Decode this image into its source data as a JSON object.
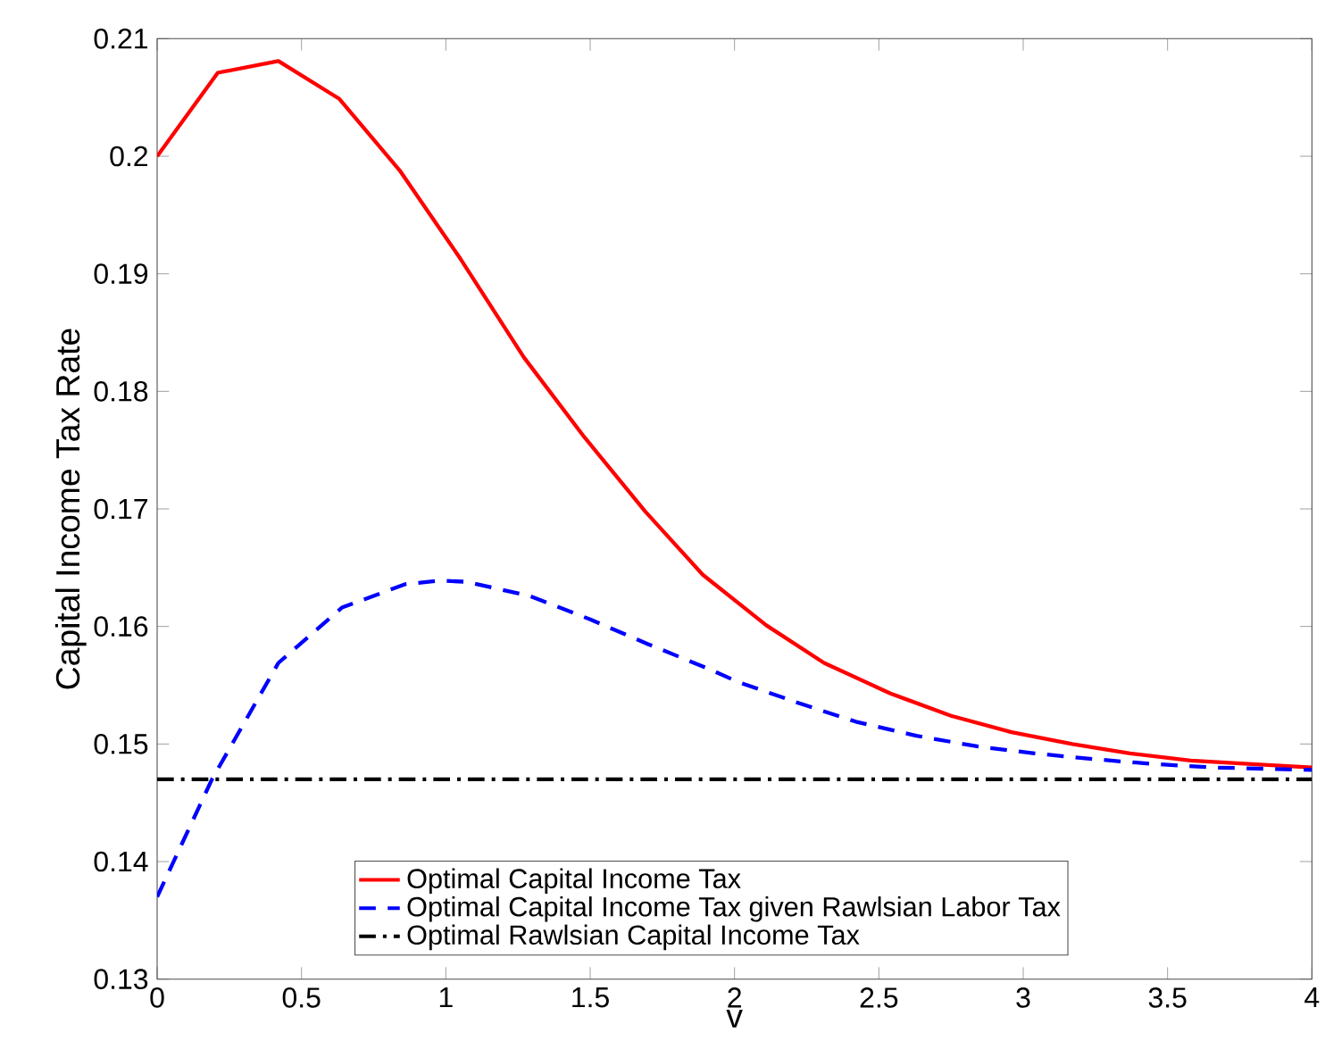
{
  "chart_data": {
    "type": "line",
    "xlabel": "v",
    "ylabel": "Capital Income Tax Rate",
    "xlim": [
      0,
      4
    ],
    "xticks": [
      0,
      0.5,
      1,
      1.5,
      2,
      2.5,
      3,
      3.5,
      4
    ],
    "ylim": [
      0.13,
      0.21
    ],
    "yticks": [
      0.13,
      0.14,
      0.15,
      0.16,
      0.17,
      0.18,
      0.19,
      0.2,
      0.21
    ],
    "legend": "bottom",
    "grid": false,
    "marker": "none",
    "series": [
      {
        "name": "Optimal Capital Income Tax",
        "color": "#ff0000",
        "line_style": "solid",
        "x": [
          0,
          0.21,
          0.42,
          0.63,
          0.84,
          1.05,
          1.27,
          1.48,
          1.69,
          1.89,
          2.11,
          2.31,
          2.54,
          2.75,
          2.96,
          3.17,
          3.37,
          3.58,
          3.78,
          4
        ],
        "values": [
          0.2,
          0.2071,
          0.2081,
          0.2049,
          0.1988,
          0.1913,
          0.1829,
          0.1761,
          0.1698,
          0.1644,
          0.1601,
          0.1569,
          0.1543,
          0.1524,
          0.151,
          0.15,
          0.1492,
          0.1486,
          0.1483,
          0.148
        ]
      },
      {
        "name": "Optimal Capital Income Tax given Rawlsian Labor Tax",
        "color": "#0000ff",
        "line_style": "dashed",
        "x": [
          0,
          0.19,
          0.42,
          0.64,
          0.86,
          0.98,
          1.07,
          1.29,
          1.5,
          1.7,
          1.91,
          2.01,
          2.22,
          2.42,
          2.63,
          2.84,
          3.04,
          3.25,
          3.45,
          3.66,
          4
        ],
        "values": [
          0.137,
          0.147,
          0.1569,
          0.1616,
          0.1636,
          0.1639,
          0.1638,
          0.1626,
          0.1606,
          0.1585,
          0.1564,
          0.1553,
          0.1535,
          0.1519,
          0.1507,
          0.1498,
          0.1492,
          0.1487,
          0.1483,
          0.148,
          0.1478
        ]
      },
      {
        "name": "Optimal Rawlsian Capital Income Tax",
        "color": "#000000",
        "line_style": "dashdot",
        "x": [
          0,
          4
        ],
        "values": [
          0.147,
          0.147
        ]
      }
    ]
  }
}
